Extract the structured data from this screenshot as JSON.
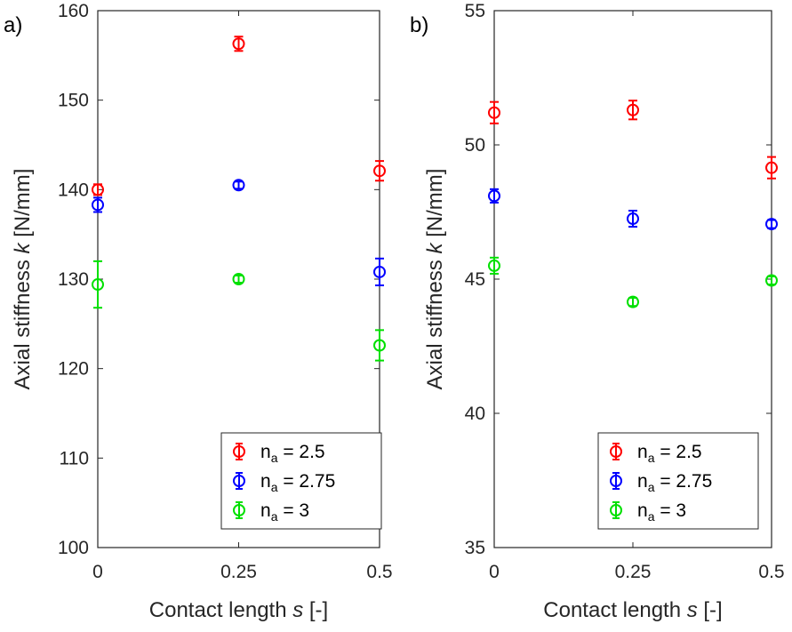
{
  "chart_data": [
    {
      "panel_label": "a)",
      "type": "scatter",
      "xlabel": "Contact length ",
      "xlabel_var": "s",
      "xlabel_unit": "[-]",
      "ylabel": "Axial stiffness ",
      "ylabel_var": "k",
      "ylabel_unit": "[N/mm]",
      "xlim": [
        0,
        0.5
      ],
      "ylim": [
        100,
        160
      ],
      "xticks": [
        0,
        0.25,
        0.5
      ],
      "xtick_labels": [
        "0",
        "0.25",
        "0.5"
      ],
      "yticks": [
        100,
        110,
        120,
        130,
        140,
        150,
        160
      ],
      "grid": false,
      "legend_position": "bottom-right",
      "series": [
        {
          "label_base": "n",
          "label_sub": "a",
          "label_value": " = 2.5",
          "color": "#ff0000",
          "x": [
            0,
            0.25,
            0.5
          ],
          "y": [
            140.0,
            156.3,
            142.1
          ],
          "err": [
            0.6,
            0.8,
            1.1
          ]
        },
        {
          "label_base": "n",
          "label_sub": "a",
          "label_value": " = 2.75",
          "color": "#0000ff",
          "x": [
            0,
            0.25,
            0.5
          ],
          "y": [
            138.3,
            140.5,
            130.8
          ],
          "err": [
            0.8,
            0.4,
            1.5
          ]
        },
        {
          "label_base": "n",
          "label_sub": "a",
          "label_value": " = 3",
          "color": "#00e000",
          "x": [
            0,
            0.25,
            0.5
          ],
          "y": [
            129.4,
            130.0,
            122.6
          ],
          "err": [
            2.6,
            0.4,
            1.7
          ]
        }
      ]
    },
    {
      "panel_label": "b)",
      "type": "scatter",
      "xlabel": "Contact length ",
      "xlabel_var": "s",
      "xlabel_unit": "[-]",
      "ylabel": "Axial stiffness ",
      "ylabel_var": "k",
      "ylabel_unit": "[N/mm]",
      "xlim": [
        0,
        0.5
      ],
      "ylim": [
        35,
        55
      ],
      "xticks": [
        0,
        0.25,
        0.5
      ],
      "xtick_labels": [
        "0",
        "0.25",
        "0.5"
      ],
      "yticks": [
        35,
        40,
        45,
        50,
        55
      ],
      "grid": false,
      "legend_position": "bottom-right",
      "series": [
        {
          "label_base": "n",
          "label_sub": "a",
          "label_value": " = 2.5",
          "color": "#ff0000",
          "x": [
            0,
            0.25,
            0.5
          ],
          "y": [
            51.2,
            51.3,
            49.15
          ],
          "err": [
            0.4,
            0.35,
            0.4
          ]
        },
        {
          "label_base": "n",
          "label_sub": "a",
          "label_value": " = 2.75",
          "color": "#0000ff",
          "x": [
            0,
            0.25,
            0.5
          ],
          "y": [
            48.1,
            47.25,
            47.05
          ],
          "err": [
            0.25,
            0.3,
            0.15
          ]
        },
        {
          "label_base": "n",
          "label_sub": "a",
          "label_value": " = 3",
          "color": "#00e000",
          "x": [
            0,
            0.25,
            0.5
          ],
          "y": [
            45.5,
            44.15,
            44.95
          ],
          "err": [
            0.3,
            0.15,
            0.15
          ]
        }
      ]
    }
  ]
}
